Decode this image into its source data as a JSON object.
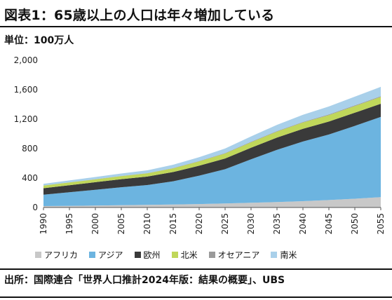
{
  "title": "図表1：65歳以上の人口は年々増加している",
  "unit": "単位：100万人",
  "source": "出所：国際連合「世界人口推計2024年版：結果の概要」、UBS",
  "chart_data": {
    "type": "area",
    "stacked": true,
    "x": [
      1990,
      1995,
      2000,
      2005,
      2010,
      2015,
      2020,
      2025,
      2030,
      2035,
      2040,
      2045,
      2050,
      2055
    ],
    "x_tick_labels": [
      "1990",
      "1995",
      "2000",
      "2005",
      "2010",
      "2015",
      "2020",
      "2025",
      "2030",
      "2035",
      "2040",
      "2045",
      "2050",
      "2055"
    ],
    "ylim": [
      0,
      2000
    ],
    "y_ticks": [
      0,
      400,
      800,
      1200,
      1600,
      2000
    ],
    "y_tick_labels": [
      "0",
      "400",
      "800",
      "1,200",
      "1,600",
      "2,000"
    ],
    "grid": false,
    "legend_position": "bottom",
    "series": [
      {
        "name": "アフリカ",
        "color": "#c8c8c8",
        "values": [
          19,
          22,
          26,
          30,
          35,
          41,
          47,
          55,
          64,
          74,
          86,
          101,
          119,
          140
        ]
      },
      {
        "name": "アジア",
        "color": "#6cb4e0",
        "values": [
          155,
          185,
          215,
          245,
          270,
          315,
          385,
          465,
          590,
          710,
          810,
          890,
          990,
          1090
        ]
      },
      {
        "name": "欧州",
        "color": "#3a3a3a",
        "values": [
          88,
          96,
          103,
          110,
          115,
          126,
          136,
          146,
          157,
          166,
          173,
          177,
          179,
          180
        ]
      },
      {
        "name": "北米",
        "color": "#c0d75a",
        "values": [
          35,
          37,
          38,
          41,
          44,
          50,
          58,
          67,
          75,
          81,
          85,
          87,
          90,
          92
        ]
      },
      {
        "name": "オセアニア",
        "color": "#9a9a9a",
        "values": [
          2,
          2,
          3,
          3,
          3,
          4,
          5,
          6,
          6,
          7,
          8,
          9,
          10,
          10
        ]
      },
      {
        "name": "南米",
        "color": "#a9d0ea",
        "values": [
          22,
          26,
          29,
          33,
          38,
          45,
          53,
          62,
          74,
          85,
          97,
          108,
          118,
          127
        ]
      }
    ]
  }
}
